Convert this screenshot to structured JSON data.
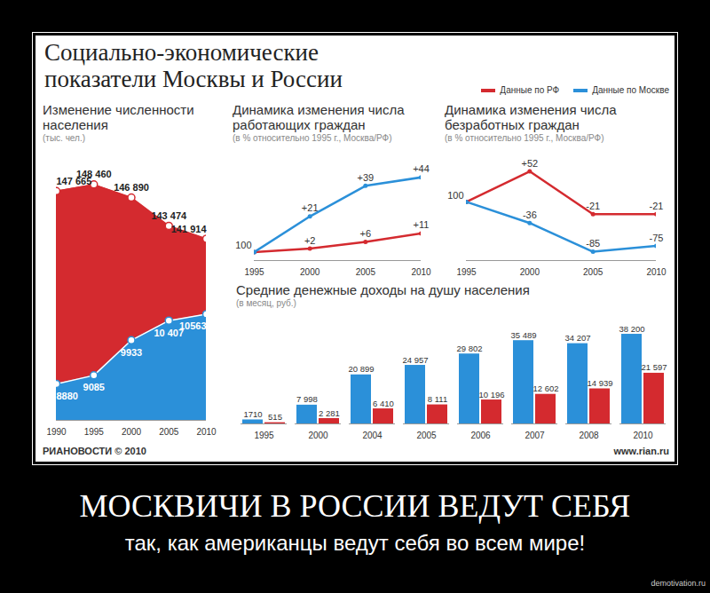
{
  "title": "Социально-экономические показатели Москвы и России",
  "legend": "top-right",
  "source": "РИАНОВОСТИ © 2010",
  "url": "www.rian.ru",
  "caption": "МОСКВИЧИ В РОССИИ ВЕДУТ СЕБЯ",
  "subcaption": "так, как американцы ведут себя во всем мире!",
  "site": "demotivation.ru",
  "chart_data": [
    {
      "type": "area",
      "title": "Изменение численности населения",
      "subtitle": "(тыс. чел.)",
      "x": [
        1990,
        1995,
        2000,
        2005,
        2010
      ],
      "xlim": [
        1990,
        2010
      ],
      "xticks": [
        1990,
        1995,
        2000,
        2005,
        2010
      ],
      "ylim": [
        120000,
        150000
      ],
      "y2lim": [
        8000,
        14000
      ],
      "tick_labels": "x",
      "data_labels": true,
      "series": [
        {
          "name": "Данные по РФ",
          "color": "#d42a2f",
          "values": [
            147665,
            148460,
            146890,
            143474,
            141914
          ],
          "value_labels": [
            "147 665",
            "148 460",
            "146 890",
            "143 474",
            "141 914"
          ]
        },
        {
          "name": "Данные по Москве",
          "color": "#2b90d9",
          "axis": "y2",
          "values": [
            8880,
            9085,
            9933,
            10407,
            10563
          ],
          "value_labels": [
            "8880",
            "9085",
            "9933",
            "10 407",
            "10563"
          ]
        }
      ]
    },
    {
      "type": "line",
      "title": "Динамика изменения числа работающих граждан",
      "subtitle": "(в % относительно 1995 г., Москва/РФ)",
      "x": [
        1995,
        2000,
        2005,
        2010
      ],
      "xlim": [
        1995,
        2010
      ],
      "xticks": [
        1995,
        2000,
        2005,
        2010
      ],
      "ylim": [
        -5,
        52
      ],
      "tick_labels": "x",
      "data_labels": true,
      "annotations": [
        {
          "text": "100",
          "x": 1995,
          "y": 0
        }
      ],
      "series": [
        {
          "name": "Данные по РФ",
          "color": "#d42a2f",
          "values": [
            0,
            2,
            6,
            11
          ],
          "value_labels": [
            null,
            "+2",
            "+6",
            "+11"
          ]
        },
        {
          "name": "Данные по Москве",
          "color": "#2b90d9",
          "values": [
            0,
            21,
            39,
            44
          ],
          "value_labels": [
            null,
            "+21",
            "+39",
            "+44"
          ]
        }
      ]
    },
    {
      "type": "line",
      "title": "Динамика изменения числа безработных граждан",
      "subtitle": "(в % относительно 1995 г., Москва/РФ)",
      "x": [
        1995,
        2000,
        2005,
        2010
      ],
      "xlim": [
        1995,
        2010
      ],
      "xticks": [
        1995,
        2000,
        2005,
        2010
      ],
      "ylim": [
        -100,
        65
      ],
      "tick_labels": "x",
      "data_labels": true,
      "annotations": [
        {
          "text": "100",
          "x": 1995,
          "y": 0
        }
      ],
      "series": [
        {
          "name": "Данные по РФ",
          "color": "#d42a2f",
          "values": [
            0,
            52,
            -21,
            -21
          ],
          "value_labels": [
            null,
            "+52",
            "-21",
            "-21"
          ]
        },
        {
          "name": "Данные по Москве",
          "color": "#2b90d9",
          "values": [
            0,
            -36,
            -85,
            -75
          ],
          "value_labels": [
            null,
            "-36",
            "-85",
            "-75"
          ]
        }
      ]
    },
    {
      "type": "bar",
      "title": "Средние денежные доходы на душу населения",
      "subtitle": "(в месяц, руб.)",
      "categories": [
        "1995",
        "2000",
        "2004",
        "2005",
        "2006",
        "2007",
        "2008",
        "2010"
      ],
      "ylim": [
        0,
        42000
      ],
      "tick_labels": "x",
      "data_labels": true,
      "series": [
        {
          "name": "Данные по Москве",
          "color": "#2b90d9",
          "values": [
            1710,
            7998,
            20899,
            24957,
            29802,
            35489,
            34207,
            38200
          ],
          "value_labels": [
            "1710",
            "7 998",
            "20 899",
            "24 957",
            "29 802",
            "35 489",
            "34 207",
            "38 200"
          ]
        },
        {
          "name": "Данные по РФ",
          "color": "#d42a2f",
          "values": [
            515,
            2281,
            6410,
            8111,
            10196,
            12602,
            14939,
            21597
          ],
          "value_labels": [
            "515",
            "2 281",
            "6 410",
            "8 111",
            "10 196",
            "12 602",
            "14 939",
            "21 597"
          ]
        }
      ]
    }
  ]
}
